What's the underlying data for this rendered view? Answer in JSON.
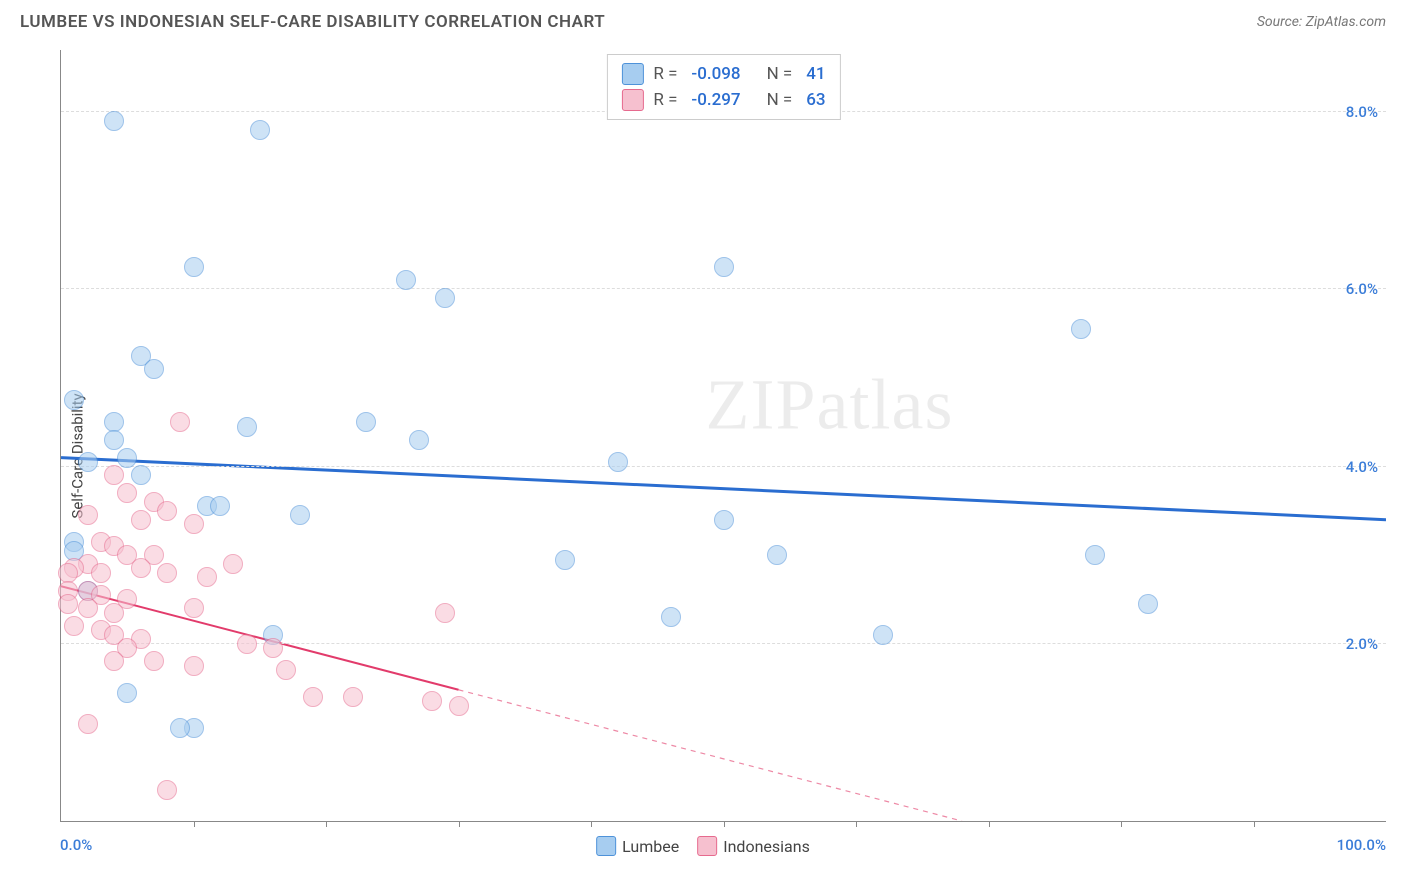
{
  "header": {
    "title": "LUMBEE VS INDONESIAN SELF-CARE DISABILITY CORRELATION CHART",
    "source": "Source: ZipAtlas.com"
  },
  "chart": {
    "type": "scatter",
    "ylabel": "Self-Care Disability",
    "xlim": [
      0,
      100
    ],
    "ylim": [
      0,
      8.7
    ],
    "x_ticks": [
      0,
      100
    ],
    "x_tick_labels": [
      "0.0%",
      "100.0%"
    ],
    "x_minor_ticks": [
      10,
      20,
      30,
      40,
      50,
      60,
      70,
      80,
      90
    ],
    "y_ticks": [
      2.0,
      4.0,
      6.0,
      8.0
    ],
    "y_tick_labels": [
      "2.0%",
      "4.0%",
      "6.0%",
      "8.0%"
    ],
    "y_tick_color": "#3b7dd8",
    "x_tick_color": "#3b7dd8",
    "background_color": "#ffffff",
    "grid_color": "#dddddd",
    "axis_color": "#888888",
    "marker_radius": 10,
    "marker_opacity": 0.55,
    "series": [
      {
        "name": "Lumbee",
        "color_fill": "#a7cdf0",
        "color_stroke": "#4e92d9",
        "r": -0.098,
        "n": 41,
        "trend": {
          "x1": 0,
          "y1": 4.1,
          "x2": 100,
          "y2": 3.4,
          "dash_from_x": null,
          "color": "#2a6dd0",
          "width": 3
        },
        "points": [
          [
            4,
            7.9
          ],
          [
            15,
            7.8
          ],
          [
            10,
            6.25
          ],
          [
            26,
            6.1
          ],
          [
            29,
            5.9
          ],
          [
            50,
            6.25
          ],
          [
            6,
            5.25
          ],
          [
            7,
            5.1
          ],
          [
            1,
            4.75
          ],
          [
            4,
            4.5
          ],
          [
            4,
            4.3
          ],
          [
            14,
            4.45
          ],
          [
            23,
            4.5
          ],
          [
            27,
            4.3
          ],
          [
            2,
            4.05
          ],
          [
            5,
            4.1
          ],
          [
            6,
            3.9
          ],
          [
            11,
            3.55
          ],
          [
            12,
            3.55
          ],
          [
            18,
            3.45
          ],
          [
            1,
            3.15
          ],
          [
            1,
            3.05
          ],
          [
            38,
            2.95
          ],
          [
            50,
            3.4
          ],
          [
            54,
            3.0
          ],
          [
            42,
            4.05
          ],
          [
            77,
            5.55
          ],
          [
            78,
            3.0
          ],
          [
            82,
            2.45
          ],
          [
            62,
            2.1
          ],
          [
            46,
            2.3
          ],
          [
            16,
            2.1
          ],
          [
            5,
            1.45
          ],
          [
            10,
            1.05
          ],
          [
            9,
            1.05
          ],
          [
            2,
            2.6
          ]
        ]
      },
      {
        "name": "Indonesians",
        "color_fill": "#f6c0cf",
        "color_stroke": "#e66a8e",
        "r": -0.297,
        "n": 63,
        "trend": {
          "x1": 0,
          "y1": 2.65,
          "x2": 68,
          "y2": 0.0,
          "dash_from_x": 30,
          "color": "#e23b6b",
          "width": 2
        },
        "points": [
          [
            9,
            4.5
          ],
          [
            4,
            3.9
          ],
          [
            5,
            3.7
          ],
          [
            7,
            3.6
          ],
          [
            2,
            3.45
          ],
          [
            8,
            3.5
          ],
          [
            6,
            3.4
          ],
          [
            10,
            3.35
          ],
          [
            3,
            3.15
          ],
          [
            4,
            3.1
          ],
          [
            5,
            3.0
          ],
          [
            7,
            3.0
          ],
          [
            2,
            2.9
          ],
          [
            1,
            2.85
          ],
          [
            0.5,
            2.8
          ],
          [
            3,
            2.8
          ],
          [
            6,
            2.85
          ],
          [
            8,
            2.8
          ],
          [
            11,
            2.75
          ],
          [
            13,
            2.9
          ],
          [
            0.5,
            2.6
          ],
          [
            2,
            2.6
          ],
          [
            3,
            2.55
          ],
          [
            5,
            2.5
          ],
          [
            0.5,
            2.45
          ],
          [
            2,
            2.4
          ],
          [
            4,
            2.35
          ],
          [
            10,
            2.4
          ],
          [
            1,
            2.2
          ],
          [
            3,
            2.15
          ],
          [
            4,
            2.1
          ],
          [
            6,
            2.05
          ],
          [
            5,
            1.95
          ],
          [
            4,
            1.8
          ],
          [
            7,
            1.8
          ],
          [
            10,
            1.75
          ],
          [
            14,
            2.0
          ],
          [
            16,
            1.95
          ],
          [
            2,
            1.1
          ],
          [
            17,
            1.7
          ],
          [
            19,
            1.4
          ],
          [
            22,
            1.4
          ],
          [
            28,
            1.35
          ],
          [
            29,
            2.35
          ],
          [
            30,
            1.3
          ],
          [
            8,
            0.35
          ]
        ]
      }
    ],
    "stat_legend": {
      "label_r": "R =",
      "label_n": "N ="
    },
    "watermark": "ZIPatlas"
  }
}
